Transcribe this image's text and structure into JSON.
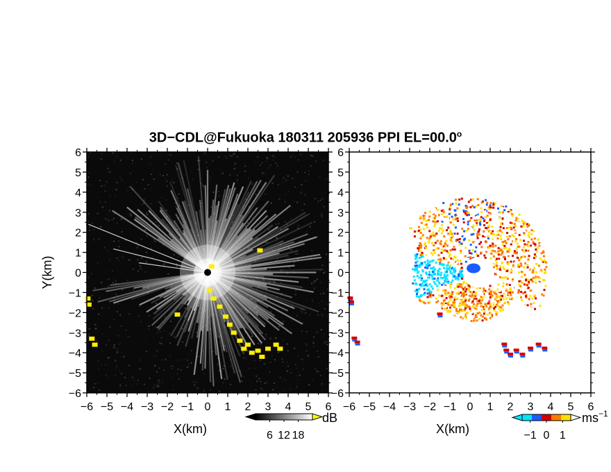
{
  "title": {
    "main": "3D−CDL@Fukuoka 180311 205936 PPI EL=00.0",
    "degree": "o"
  },
  "chart_data": [
    {
      "type": "heatmap",
      "name_hint": "",
      "xlabel": "X(km)",
      "ylabel": "Y(km)",
      "xlim": [
        -6,
        6
      ],
      "ylim": [
        -6,
        6
      ],
      "x_ticks": [
        "−6",
        "−5",
        "−4",
        "−3",
        "−2",
        "−1",
        "0",
        "1",
        "2",
        "3",
        "4",
        "5",
        "6"
      ],
      "y_ticks": [
        "−6",
        "−5",
        "−4",
        "−3",
        "−2",
        "−1",
        "0",
        "1",
        "2",
        "3",
        "4",
        "5",
        "6"
      ],
      "colorbar": {
        "unit": "dB",
        "ticks": [
          "6",
          "12",
          "18"
        ],
        "tick_values": [
          6,
          12,
          18
        ],
        "range": [
          0,
          24
        ],
        "colors": [
          "#000000",
          "#ffffff"
        ],
        "overflow_color": "#ffff00"
      },
      "background_color": "#0a0a0a",
      "highlight_color": "#ffee00"
    },
    {
      "type": "heatmap",
      "xlabel": "X(km)",
      "ylabel": "",
      "xlim": [
        -6,
        6
      ],
      "ylim": [
        -6,
        6
      ],
      "x_ticks": [
        "−6",
        "−5",
        "−4",
        "−3",
        "−2",
        "−1",
        "0",
        "1",
        "2",
        "3",
        "4",
        "5",
        "6"
      ],
      "y_ticks": [
        "−6",
        "−5",
        "−4",
        "−3",
        "−2",
        "−1",
        "0",
        "1",
        "2",
        "3",
        "4",
        "5",
        "6"
      ],
      "colorbar": {
        "unit": "ms",
        "unit_exp": "−1",
        "ticks": [
          "−1",
          "0",
          "1"
        ],
        "tick_values": [
          -1,
          0,
          1
        ],
        "range": [
          -1.5,
          1.5
        ],
        "colors": [
          "#00e5ff",
          "#1a5cff",
          "#d40000",
          "#ff7a00",
          "#ffe000"
        ],
        "overflow_color": "#ffffff"
      },
      "background_color": "#ffffff"
    }
  ]
}
